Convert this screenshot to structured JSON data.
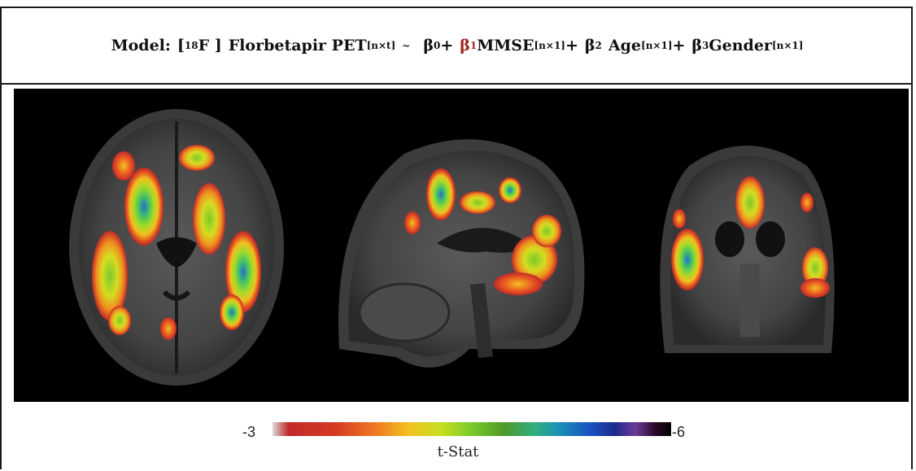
{
  "header": {
    "model_label": "Model:",
    "isotope_open": "[",
    "isotope_mass": "18",
    "isotope_element": "F ]",
    "tracer": "Florbetapir PET",
    "tracer_dim": "[n×t]",
    "tilde": "~",
    "b0": "β",
    "b0_sub": "0",
    "plus1": "+",
    "b1": "β",
    "b1_sub": "1",
    "var1": "MMSE",
    "var1_dim": "[n×1]",
    "plus2": "+",
    "b2": "β",
    "b2_sub": "2",
    "var2": "Age",
    "var2_dim": "[n×1]",
    "plus3": "+",
    "b3": "β",
    "b3_sub": "3",
    "var3": "Gender",
    "var3_dim": "[n×1]",
    "highlight_color": "#a0281e"
  },
  "views": [
    {
      "name": "axial-slice"
    },
    {
      "name": "sagittal-slice"
    },
    {
      "name": "coronal-slice"
    }
  ],
  "colorbar": {
    "low": "-3",
    "high": "-6",
    "label": "t-Stat"
  }
}
